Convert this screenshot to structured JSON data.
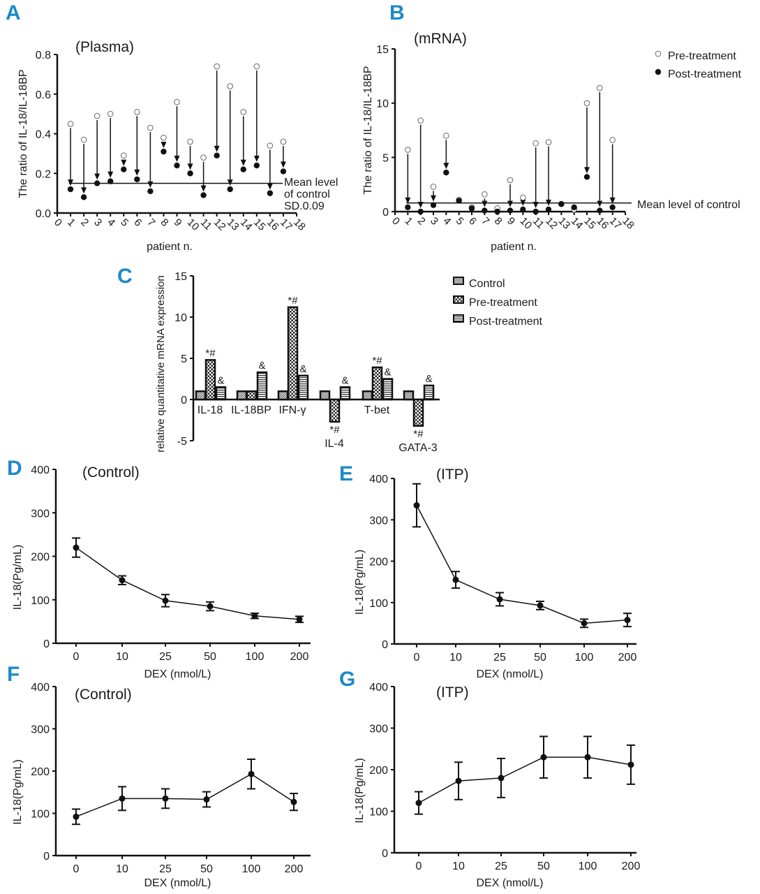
{
  "panels": [
    "A",
    "B",
    "C",
    "D",
    "E",
    "F",
    "G"
  ],
  "colors": {
    "panel_letter": "#1b8ac9",
    "ink": "#111111",
    "pre_marker": "#ffffff",
    "post_marker": "#111111"
  },
  "chart_data": [
    {
      "panel": "A",
      "type": "scatter",
      "title": "(Plasma)",
      "xlabel": "patient n.",
      "ylabel": "The ratio of IL-18/IL-18BP",
      "xlim": [
        0,
        18
      ],
      "ylim": [
        0,
        0.8
      ],
      "xticks": [
        "0",
        "1",
        "2",
        "3",
        "4",
        "5",
        "6",
        "7",
        "8",
        "9",
        "10",
        "11",
        "12",
        "13",
        "14",
        "15",
        "16",
        "17",
        "18"
      ],
      "yticks": [
        "0.0",
        "0.2",
        "0.4",
        "0.6",
        "0.8"
      ],
      "x": [
        1,
        2,
        3,
        4,
        5,
        6,
        7,
        8,
        9,
        10,
        11,
        12,
        13,
        14,
        15,
        16,
        17
      ],
      "series": [
        {
          "name": "Pre-treatment",
          "marker": "open-circle",
          "values": [
            0.45,
            0.37,
            0.49,
            0.5,
            0.29,
            0.51,
            0.43,
            0.38,
            0.56,
            0.36,
            0.28,
            0.74,
            0.64,
            0.51,
            0.74,
            0.34,
            0.36
          ]
        },
        {
          "name": "Post-treatment",
          "marker": "filled-circle",
          "values": [
            0.12,
            0.08,
            0.15,
            0.16,
            0.22,
            0.17,
            0.11,
            0.31,
            0.24,
            0.2,
            0.09,
            0.29,
            0.12,
            0.22,
            0.24,
            0.1,
            0.21
          ]
        }
      ],
      "reference_line": {
        "value": 0.15,
        "label_lines": [
          "Mean level",
          "of control",
          "SD.0.09"
        ]
      }
    },
    {
      "panel": "B",
      "type": "scatter",
      "title": "(mRNA)",
      "xlabel": "patient n.",
      "ylabel": "The ratio of IL-18/IL-18BP",
      "xlim": [
        0,
        18
      ],
      "ylim": [
        0,
        15
      ],
      "xticks": [
        "0",
        "1",
        "2",
        "3",
        "4",
        "5",
        "6",
        "7",
        "8",
        "9",
        "10",
        "11",
        "12",
        "13",
        "14",
        "15",
        "16",
        "17",
        "18"
      ],
      "yticks": [
        "0",
        "5",
        "10",
        "15"
      ],
      "x": [
        1,
        2,
        3,
        4,
        5,
        6,
        7,
        8,
        9,
        10,
        11,
        12,
        13,
        14,
        15,
        16,
        17
      ],
      "series": [
        {
          "name": "Pre-treatment",
          "marker": "open-circle",
          "values": [
            5.7,
            8.4,
            2.3,
            7.0,
            1.1,
            0.4,
            1.6,
            0.3,
            2.9,
            1.3,
            6.3,
            6.4,
            0.7,
            0.2,
            10.0,
            11.4,
            6.6
          ]
        },
        {
          "name": "Post-treatment",
          "marker": "filled-circle",
          "values": [
            0.4,
            0.0,
            0.6,
            3.6,
            1.0,
            0.3,
            0.1,
            0.0,
            0.1,
            0.2,
            0.0,
            0.2,
            0.7,
            0.4,
            3.2,
            0.1,
            0.4
          ]
        }
      ],
      "reference_line": {
        "value": 0.8,
        "label_lines": [
          "Mean level of control"
        ]
      },
      "legend": {
        "placement": "top-right"
      }
    },
    {
      "panel": "C",
      "type": "bar",
      "title": "",
      "xlabel": "",
      "ylabel": "relative quantitative mRNA expression",
      "ylim": [
        -5,
        15
      ],
      "yticks": [
        "-5",
        "0",
        "5",
        "10",
        "15"
      ],
      "categories": [
        "IL-18",
        "IL-18BP",
        "IFN-γ",
        "IL-4",
        "T-bet",
        "GATA-3"
      ],
      "series": [
        {
          "name": "Control",
          "pattern": "fine-check",
          "values": [
            1,
            1,
            1,
            1,
            1,
            1
          ]
        },
        {
          "name": "Pre-treatment",
          "pattern": "checker",
          "values": [
            4.8,
            1.0,
            11.2,
            -2.7,
            3.9,
            -3.2
          ],
          "annotations": [
            "*#",
            "",
            "*#",
            "*#",
            "*#",
            "*#"
          ]
        },
        {
          "name": "Post-treatment",
          "pattern": "horizontal-stripes",
          "values": [
            1.5,
            3.3,
            2.9,
            1.5,
            2.5,
            1.7
          ],
          "annotations": [
            "&",
            "&",
            "&",
            "&",
            "&",
            "&"
          ]
        }
      ],
      "legend": {
        "placement": "top-right"
      }
    },
    {
      "panel": "D",
      "type": "line",
      "title": "(Control)",
      "xlabel": "DEX (nmol/L)",
      "ylabel": "IL-18(Pg/mL)",
      "ylim": [
        0,
        400
      ],
      "yticks": [
        "0",
        "100",
        "200",
        "300",
        "400"
      ],
      "categories": [
        "0",
        "10",
        "25",
        "50",
        "100",
        "200"
      ],
      "series": [
        {
          "values": [
            220,
            145,
            98,
            85,
            63,
            55
          ],
          "errors": [
            22,
            10,
            14,
            10,
            6,
            7
          ]
        }
      ]
    },
    {
      "panel": "E",
      "type": "line",
      "title": "(ITP)",
      "xlabel": "DEX (nmol/L)",
      "ylabel": "IL-18(Pg/mL)",
      "ylim": [
        0,
        400
      ],
      "yticks": [
        "0",
        "100",
        "200",
        "300",
        "400"
      ],
      "categories": [
        "0",
        "10",
        "25",
        "50",
        "100",
        "200"
      ],
      "series": [
        {
          "values": [
            335,
            155,
            108,
            93,
            50,
            58
          ],
          "errors": [
            52,
            20,
            16,
            10,
            10,
            16
          ]
        }
      ]
    },
    {
      "panel": "F",
      "type": "line",
      "title": "(Control)",
      "xlabel": "DEX (nmol/L)",
      "ylabel": "IL-18(Pg/mL)",
      "ylim": [
        0,
        400
      ],
      "yticks": [
        "0",
        "100",
        "200",
        "300",
        "400"
      ],
      "categories": [
        "0",
        "10",
        "25",
        "50",
        "100",
        "200"
      ],
      "series": [
        {
          "values": [
            92,
            135,
            135,
            133,
            193,
            127
          ],
          "errors": [
            18,
            28,
            23,
            18,
            35,
            20
          ]
        }
      ]
    },
    {
      "panel": "G",
      "type": "line",
      "title": "(ITP)",
      "xlabel": "DEX (nmol/L)",
      "ylabel": "IL-18(Pg/mL)",
      "ylim": [
        0,
        400
      ],
      "yticks": [
        "0",
        "100",
        "200",
        "300",
        "400"
      ],
      "categories": [
        "0",
        "10",
        "25",
        "50",
        "100",
        "200"
      ],
      "series": [
        {
          "values": [
            120,
            173,
            180,
            230,
            230,
            212
          ],
          "errors": [
            27,
            45,
            47,
            50,
            50,
            47
          ]
        }
      ]
    }
  ]
}
